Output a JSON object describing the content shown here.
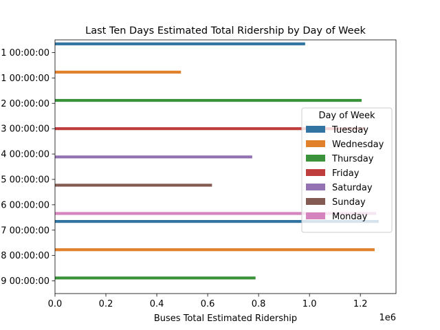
{
  "chart_data": {
    "type": "bar",
    "orientation": "horizontal",
    "title": "Last Ten Days Estimated Total Ridership by Day of Week",
    "xlabel": "Buses Total Estimated Ridership",
    "ylabel": "",
    "x_offset_label": "1e6",
    "xlim": [
      0,
      1340000
    ],
    "x_ticks": [
      {
        "value": 0,
        "label": "0.0"
      },
      {
        "value": 200000,
        "label": "0.2"
      },
      {
        "value": 400000,
        "label": "0.4"
      },
      {
        "value": 600000,
        "label": "0.6"
      },
      {
        "value": 800000,
        "label": "0.8"
      },
      {
        "value": 1000000,
        "label": "1.0"
      },
      {
        "value": 1200000,
        "label": "1.2"
      }
    ],
    "categories": [
      "1 00:00:00",
      "1 00:00:00",
      "2 00:00:00",
      "3 00:00:00",
      "4 00:00:00",
      "5 00:00:00",
      "6 00:00:00",
      "7 00:00:00",
      "8 00:00:00",
      "9 00:00:00"
    ],
    "grid": false,
    "legend": {
      "title": "Day of Week",
      "placement": "right"
    },
    "series": [
      {
        "name": "Tuesday",
        "color": "#3274a1",
        "values": [
          983000,
          null,
          null,
          null,
          null,
          null,
          null,
          1272000,
          null,
          null
        ]
      },
      {
        "name": "Wednesday",
        "color": "#e1812c",
        "values": [
          null,
          495000,
          null,
          null,
          null,
          null,
          null,
          null,
          1256000,
          null
        ]
      },
      {
        "name": "Thursday",
        "color": "#3a923a",
        "values": [
          null,
          null,
          1205000,
          null,
          null,
          null,
          null,
          null,
          null,
          788000
        ]
      },
      {
        "name": "Friday",
        "color": "#c03d3e",
        "values": [
          null,
          null,
          null,
          1220000,
          null,
          null,
          null,
          null,
          null,
          null
        ]
      },
      {
        "name": "Saturday",
        "color": "#9372b2",
        "values": [
          null,
          null,
          null,
          null,
          775000,
          null,
          null,
          null,
          null,
          null
        ]
      },
      {
        "name": "Sunday",
        "color": "#845b53",
        "values": [
          null,
          null,
          null,
          null,
          null,
          617000,
          null,
          null,
          null,
          null
        ]
      },
      {
        "name": "Monday",
        "color": "#d684bd",
        "values": [
          null,
          null,
          null,
          null,
          null,
          null,
          1262000,
          null,
          null,
          null
        ]
      }
    ]
  }
}
